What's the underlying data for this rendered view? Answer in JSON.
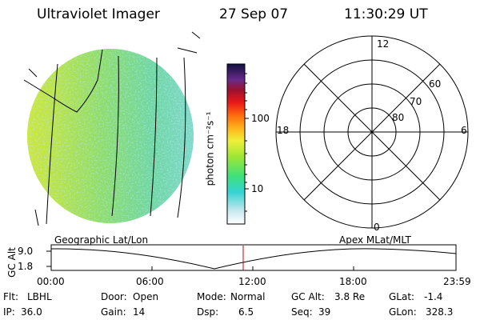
{
  "header": {
    "title": "Ultraviolet Imager",
    "date": "27 Sep 07",
    "time": "11:30:29 UT"
  },
  "colorbar": {
    "label": "photon cm⁻²s⁻¹",
    "ticks": [
      "100",
      "10"
    ]
  },
  "polar": {
    "mlt_labels": {
      "top": "12",
      "left": "18",
      "right": "6",
      "bottom": "0"
    },
    "lat_labels": [
      "60",
      "70",
      "80"
    ]
  },
  "orbit": {
    "y_axis_label": "GC Alt",
    "y_ticks": [
      "9.0",
      "1.8"
    ],
    "left_caption": "Geographic Lat/Lon",
    "right_caption": "Apex MLat/MLT",
    "x_ticks": [
      "00:00",
      "06:00",
      "12:00",
      "18:00",
      "23:59"
    ],
    "marker_color": "#cc0000"
  },
  "footer": {
    "row1": [
      {
        "label": "Flt:",
        "value": "LBHL"
      },
      {
        "label": "Door:",
        "value": "Open"
      },
      {
        "label": "Mode:",
        "value": "Normal"
      },
      {
        "label": "GC Alt:",
        "value": "3.8 Re"
      },
      {
        "label": "GLat:",
        "value": "-1.4"
      }
    ],
    "row2": [
      {
        "label": "IP:",
        "value": "36.0"
      },
      {
        "label": "Gain:",
        "value": "14"
      },
      {
        "label": "Dsp:",
        "value": "6.5"
      },
      {
        "label": "Seq:",
        "value": "39"
      },
      {
        "label": "GLon:",
        "value": "328.3"
      }
    ]
  }
}
